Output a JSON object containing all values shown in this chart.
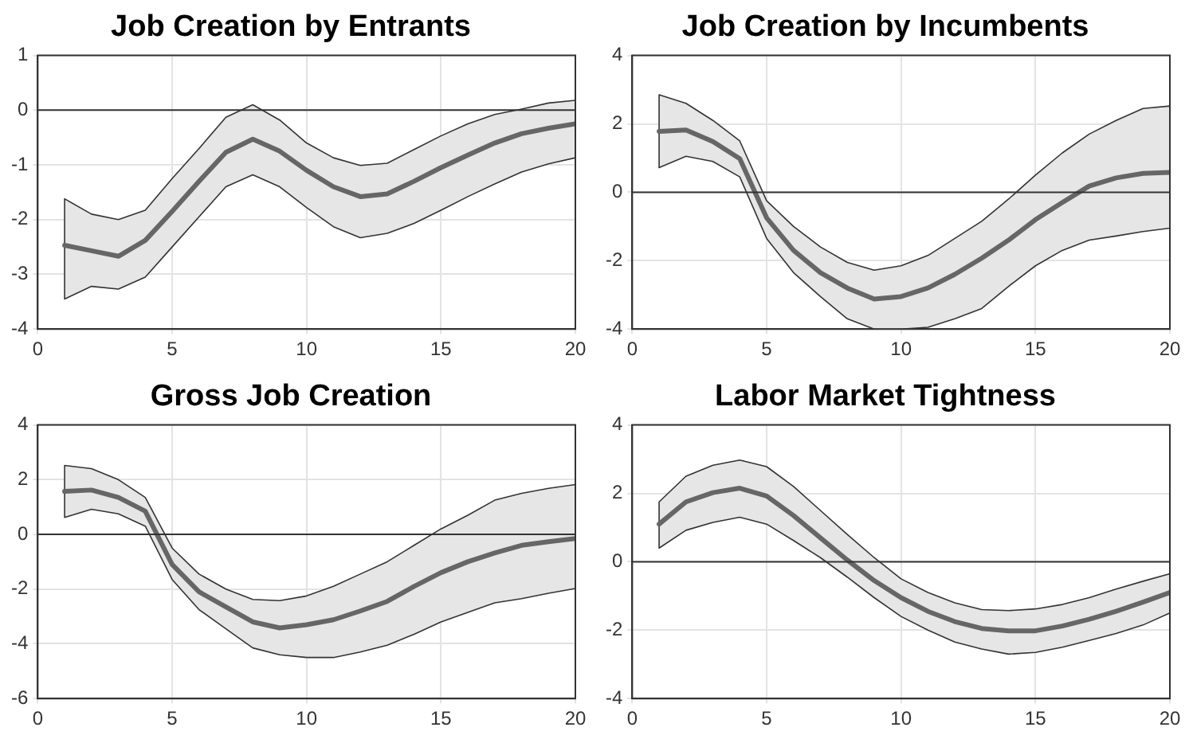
{
  "chart_data": [
    {
      "type": "line",
      "title": "Job Creation by Entrants",
      "x": [
        1,
        2,
        3,
        4,
        5,
        6,
        7,
        8,
        9,
        10,
        11,
        12,
        13,
        14,
        15,
        16,
        17,
        18,
        19,
        20
      ],
      "xlim": [
        0,
        20
      ],
      "xticks": [
        0,
        5,
        10,
        15,
        20
      ],
      "ylim": [
        -4,
        1
      ],
      "yticks": [
        -4,
        -3,
        -2,
        -1,
        0,
        1
      ],
      "grid": true,
      "legend": false,
      "marker": "none",
      "line_style": "solid",
      "ref_lines": [
        {
          "axis": "y",
          "value": 0
        }
      ],
      "series": [
        {
          "color": "#666666",
          "values": [
            -2.47,
            -2.57,
            -2.67,
            -2.38,
            -1.85,
            -1.3,
            -0.77,
            -0.53,
            -0.75,
            -1.1,
            -1.4,
            -1.58,
            -1.53,
            -1.3,
            -1.05,
            -0.82,
            -0.6,
            -0.43,
            -0.33,
            -0.25
          ],
          "upper": [
            -1.62,
            -1.9,
            -2.0,
            -1.83,
            -1.25,
            -0.7,
            -0.13,
            0.1,
            -0.18,
            -0.6,
            -0.87,
            -1.01,
            -0.97,
            -0.72,
            -0.47,
            -0.25,
            -0.08,
            0.02,
            0.13,
            0.18
          ],
          "lower": [
            -3.45,
            -3.22,
            -3.27,
            -3.05,
            -2.5,
            -1.95,
            -1.4,
            -1.18,
            -1.4,
            -1.78,
            -2.13,
            -2.33,
            -2.25,
            -2.07,
            -1.83,
            -1.58,
            -1.35,
            -1.13,
            -0.98,
            -0.87
          ]
        }
      ]
    },
    {
      "type": "line",
      "title": "Job Creation by Incumbents",
      "x": [
        1,
        2,
        3,
        4,
        5,
        6,
        7,
        8,
        9,
        10,
        11,
        12,
        13,
        14,
        15,
        16,
        17,
        18,
        19,
        20
      ],
      "xlim": [
        0,
        20
      ],
      "xticks": [
        0,
        5,
        10,
        15,
        20
      ],
      "ylim": [
        -4,
        4
      ],
      "yticks": [
        -4,
        -2,
        0,
        2,
        4
      ],
      "grid": true,
      "legend": false,
      "marker": "none",
      "line_style": "solid",
      "ref_lines": [
        {
          "axis": "y",
          "value": 0
        }
      ],
      "series": [
        {
          "color": "#666666",
          "values": [
            1.78,
            1.82,
            1.48,
            0.98,
            -0.75,
            -1.7,
            -2.35,
            -2.8,
            -3.12,
            -3.05,
            -2.8,
            -2.4,
            -1.93,
            -1.4,
            -0.8,
            -0.3,
            0.18,
            0.42,
            0.55,
            0.58
          ],
          "upper": [
            2.85,
            2.6,
            2.1,
            1.5,
            -0.25,
            -1.0,
            -1.6,
            -2.05,
            -2.28,
            -2.15,
            -1.85,
            -1.35,
            -0.85,
            -0.2,
            0.5,
            1.15,
            1.7,
            2.1,
            2.45,
            2.52
          ],
          "lower": [
            0.72,
            1.05,
            0.9,
            0.45,
            -1.35,
            -2.35,
            -3.05,
            -3.7,
            -4.0,
            -4.0,
            -3.95,
            -3.7,
            -3.4,
            -2.75,
            -2.15,
            -1.7,
            -1.4,
            -1.28,
            -1.15,
            -1.05
          ]
        }
      ]
    },
    {
      "type": "line",
      "title": "Gross Job Creation",
      "x": [
        1,
        2,
        3,
        4,
        5,
        6,
        7,
        8,
        9,
        10,
        11,
        12,
        13,
        14,
        15,
        16,
        17,
        18,
        19,
        20
      ],
      "xlim": [
        0,
        20
      ],
      "xticks": [
        0,
        5,
        10,
        15,
        20
      ],
      "ylim": [
        -6,
        4
      ],
      "yticks": [
        -6,
        -4,
        -2,
        0,
        2,
        4
      ],
      "grid": true,
      "legend": false,
      "marker": "none",
      "line_style": "solid",
      "ref_lines": [
        {
          "axis": "y",
          "value": 0
        }
      ],
      "series": [
        {
          "color": "#666666",
          "values": [
            1.57,
            1.62,
            1.35,
            0.85,
            -1.1,
            -2.1,
            -2.65,
            -3.2,
            -3.42,
            -3.3,
            -3.12,
            -2.8,
            -2.45,
            -1.9,
            -1.4,
            -1.0,
            -0.68,
            -0.4,
            -0.27,
            -0.15
          ],
          "upper": [
            2.52,
            2.4,
            2.0,
            1.35,
            -0.5,
            -1.45,
            -2.0,
            -2.38,
            -2.42,
            -2.25,
            -1.9,
            -1.45,
            -1.0,
            -0.4,
            0.2,
            0.7,
            1.25,
            1.5,
            1.68,
            1.82
          ],
          "lower": [
            0.62,
            0.92,
            0.75,
            0.3,
            -1.65,
            -2.75,
            -3.45,
            -4.15,
            -4.4,
            -4.5,
            -4.5,
            -4.3,
            -4.05,
            -3.65,
            -3.2,
            -2.85,
            -2.5,
            -2.35,
            -2.15,
            -1.98
          ]
        }
      ]
    },
    {
      "type": "line",
      "title": "Labor Market Tightness",
      "x": [
        1,
        2,
        3,
        4,
        5,
        6,
        7,
        8,
        9,
        10,
        11,
        12,
        13,
        14,
        15,
        16,
        17,
        18,
        19,
        20
      ],
      "xlim": [
        0,
        20
      ],
      "xticks": [
        0,
        5,
        10,
        15,
        20
      ],
      "ylim": [
        -4,
        4
      ],
      "yticks": [
        -4,
        -2,
        0,
        2,
        4
      ],
      "grid": true,
      "legend": false,
      "marker": "none",
      "line_style": "solid",
      "ref_lines": [
        {
          "axis": "y",
          "value": 0
        }
      ],
      "series": [
        {
          "color": "#666666",
          "values": [
            1.1,
            1.75,
            2.02,
            2.15,
            1.92,
            1.35,
            0.7,
            0.05,
            -0.55,
            -1.05,
            -1.45,
            -1.75,
            -1.95,
            -2.02,
            -2.02,
            -1.88,
            -1.68,
            -1.45,
            -1.18,
            -0.9
          ],
          "upper": [
            1.75,
            2.5,
            2.82,
            2.97,
            2.78,
            2.2,
            1.5,
            0.8,
            0.12,
            -0.5,
            -0.9,
            -1.2,
            -1.4,
            -1.43,
            -1.38,
            -1.25,
            -1.05,
            -0.8,
            -0.57,
            -0.35
          ],
          "lower": [
            0.4,
            0.92,
            1.15,
            1.3,
            1.1,
            0.62,
            0.12,
            -0.45,
            -1.05,
            -1.6,
            -2.0,
            -2.35,
            -2.55,
            -2.7,
            -2.65,
            -2.5,
            -2.3,
            -2.1,
            -1.85,
            -1.5
          ]
        }
      ]
    }
  ]
}
